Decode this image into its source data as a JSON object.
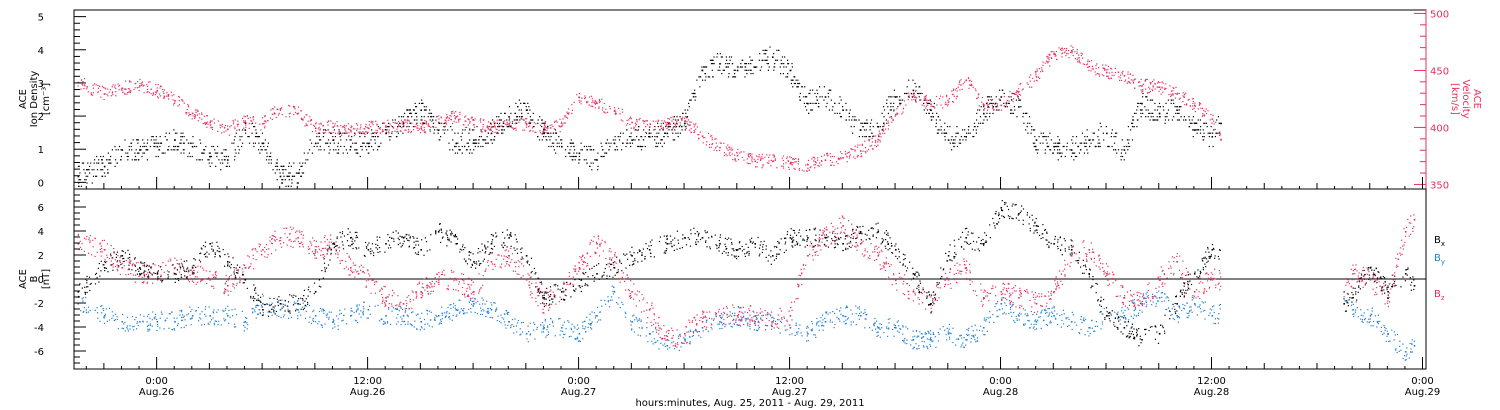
{
  "title": "",
  "xlabel": "hours:minutes, Aug. 25, 2011 - Aug. 29, 2011",
  "colors": {
    "black": "#000000",
    "pink": "#e8305c",
    "blue": "#1e7fd8"
  },
  "time_ticks": [
    {
      "time": "0:00",
      "date": "Aug.26"
    },
    {
      "time": "12:00",
      "date": "Aug.26"
    },
    {
      "time": "0:00",
      "date": "Aug.27"
    },
    {
      "time": "12:00",
      "date": "Aug.27"
    },
    {
      "time": "0:00",
      "date": "Aug.28"
    },
    {
      "time": "12:00",
      "date": "Aug.28"
    },
    {
      "time": "0:00",
      "date": "Aug.29"
    }
  ],
  "chart_data": [
    {
      "type": "scatter",
      "title": "",
      "x_unit": "hours since Aug. 25, 2011 00:00",
      "xlim": [
        19.3,
        96.2
      ],
      "ylabel_left": {
        "top": "ACE",
        "mid": "Ion Density",
        "unit": "[cm⁻³]"
      },
      "ylabel_right": {
        "top": "ACE",
        "mid": "Velocity",
        "unit": "[km/s]"
      },
      "ylim_left": [
        -0.2,
        5.2
      ],
      "ylim_right": [
        346,
        503
      ],
      "yticks_left": [
        0,
        1,
        2,
        3,
        4,
        5
      ],
      "yticks_right": [
        350,
        400,
        450,
        500
      ],
      "grid": false,
      "series": [
        {
          "name": "Ion Density",
          "axis": "left",
          "color": "#000000",
          "x": [
            19.5,
            21,
            22,
            23,
            24,
            25,
            26,
            27,
            28,
            29,
            30,
            31,
            32,
            33,
            34,
            35,
            36,
            37,
            38,
            39,
            40,
            41,
            42,
            43,
            44,
            45,
            46,
            47,
            48,
            49,
            50,
            51,
            52,
            53,
            54,
            55,
            56,
            57,
            58,
            59,
            60,
            61,
            62,
            63,
            64,
            65,
            66,
            67,
            68,
            69,
            70,
            71,
            72,
            73,
            74,
            75,
            76,
            77,
            78,
            79,
            80,
            81,
            82,
            83,
            84,
            84.5
          ],
          "values": [
            0.2,
            0.5,
            1.0,
            1.0,
            1.1,
            1.3,
            1.1,
            0.8,
            0.7,
            1.6,
            1.2,
            0.2,
            0.3,
            1.2,
            1.3,
            1.1,
            1.2,
            1.5,
            1.8,
            2.2,
            1.6,
            1.2,
            1.3,
            1.5,
            2.0,
            2.2,
            1.5,
            1.1,
            0.9,
            0.7,
            1.2,
            1.3,
            1.4,
            1.5,
            1.8,
            3.4,
            3.6,
            3.4,
            3.5,
            3.8,
            3.4,
            2.4,
            2.6,
            2.2,
            1.6,
            1.7,
            2.6,
            2.8,
            2.2,
            1.3,
            1.4,
            2.1,
            2.6,
            2.3,
            1.3,
            1.1,
            1.0,
            1.3,
            1.5,
            1.0,
            2.4,
            2.1,
            2.2,
            1.6,
            1.4,
            1.8
          ]
        },
        {
          "name": "Velocity",
          "axis": "right",
          "color": "#e8305c",
          "x": [
            19.5,
            21,
            22,
            23,
            24,
            25,
            26,
            27,
            28,
            29,
            30,
            31,
            32,
            33,
            34,
            35,
            36,
            37,
            38,
            39,
            40,
            41,
            42,
            43,
            44,
            45,
            46,
            47,
            48,
            49,
            50,
            51,
            52,
            53,
            54,
            55,
            56,
            57,
            58,
            59,
            60,
            61,
            62,
            63,
            64,
            65,
            66,
            67,
            68,
            69,
            70,
            71,
            72,
            73,
            74,
            75,
            76,
            77,
            78,
            79,
            80,
            81,
            82,
            83,
            84,
            84.5
          ],
          "values": [
            440,
            430,
            435,
            437,
            433,
            424,
            413,
            405,
            399,
            405,
            404,
            417,
            413,
            400,
            401,
            398,
            400,
            401,
            402,
            400,
            405,
            410,
            403,
            401,
            404,
            404,
            400,
            402,
            427,
            422,
            415,
            405,
            401,
            405,
            406,
            393,
            383,
            376,
            371,
            371,
            369,
            368,
            372,
            374,
            380,
            390,
            412,
            430,
            421,
            423,
            442,
            420,
            420,
            432,
            445,
            465,
            468,
            454,
            449,
            446,
            437,
            436,
            430,
            420,
            408,
            390
          ]
        }
      ]
    },
    {
      "type": "scatter",
      "title": "",
      "x_unit": "hours since Aug. 25, 2011 00:00",
      "xlim": [
        19.3,
        96.2
      ],
      "ylabel_left": {
        "top": "ACE",
        "mid": "B",
        "unit": "[nT]"
      },
      "ylim": [
        -7.5,
        7.5
      ],
      "yticks": [
        -6,
        -4,
        -2,
        0,
        2,
        4,
        6
      ],
      "zero_line": 0,
      "grid": false,
      "legend_position": "right",
      "data_gap_hours": [
        84.5,
        91.5
      ],
      "series": [
        {
          "name": "B",
          "subscript": "x",
          "color": "#000000",
          "x": [
            19.5,
            21,
            22,
            23,
            24,
            25,
            26,
            27,
            28,
            29,
            30,
            31,
            32,
            33,
            34,
            35,
            36,
            37,
            38,
            39,
            40,
            41,
            42,
            43,
            44,
            45,
            46,
            47,
            48,
            49,
            50,
            51,
            52,
            53,
            54,
            55,
            56,
            57,
            58,
            59,
            60,
            61,
            62,
            63,
            64,
            65,
            66,
            67,
            68,
            69,
            70,
            71,
            72,
            73,
            74,
            75,
            76,
            77,
            78,
            79,
            80,
            81,
            82,
            83,
            84,
            91.5,
            92,
            93,
            94,
            95,
            95.5
          ],
          "values": [
            -1.0,
            1.0,
            2.0,
            1.0,
            0.5,
            0.5,
            1.0,
            3.0,
            1.5,
            0.0,
            -2.5,
            -2.0,
            -2.0,
            -1.0,
            3.0,
            3.5,
            2.5,
            3.0,
            3.5,
            2.5,
            4.0,
            3.0,
            1.5,
            3.0,
            3.5,
            2.0,
            -1.5,
            -1.0,
            -0.5,
            0.5,
            1.0,
            2.0,
            2.5,
            3.0,
            3.5,
            3.5,
            3.0,
            2.5,
            3.0,
            2.0,
            3.5,
            3.5,
            3.5,
            3.0,
            4.0,
            4.0,
            2.5,
            0.5,
            -2.0,
            2.0,
            3.5,
            3.0,
            6.0,
            5.5,
            4.5,
            3.0,
            2.5,
            0.5,
            -3.0,
            -4.0,
            -5.0,
            -4.5,
            -2.0,
            0.5,
            2.5,
            -2.0,
            -1.5,
            1.0,
            -1.0,
            0.5,
            -0.5
          ]
        },
        {
          "name": "B",
          "subscript": "y",
          "color": "#1e7fd8",
          "x": [
            19.5,
            21,
            22,
            23,
            24,
            25,
            26,
            27,
            28,
            29,
            30,
            31,
            32,
            33,
            34,
            35,
            36,
            37,
            38,
            39,
            40,
            41,
            42,
            43,
            44,
            45,
            46,
            47,
            48,
            49,
            50,
            51,
            52,
            53,
            54,
            55,
            56,
            57,
            58,
            59,
            60,
            61,
            62,
            63,
            64,
            65,
            66,
            67,
            68,
            69,
            70,
            71,
            72,
            73,
            74,
            75,
            76,
            77,
            78,
            79,
            80,
            81,
            82,
            83,
            84,
            91.5,
            92,
            93,
            94,
            95,
            95.5
          ],
          "values": [
            -2.0,
            -3.0,
            -3.5,
            -3.5,
            -3.5,
            -3.5,
            -3.0,
            -3.0,
            -3.0,
            -3.5,
            -2.0,
            -2.5,
            -2.5,
            -3.0,
            -3.5,
            -3.0,
            -2.5,
            -3.0,
            -3.0,
            -3.5,
            -3.0,
            -2.5,
            -2.0,
            -2.5,
            -3.5,
            -4.5,
            -4.0,
            -4.0,
            -4.5,
            -3.0,
            -1.0,
            -3.5,
            -4.5,
            -5.5,
            -5.0,
            -4.0,
            -3.5,
            -3.0,
            -3.5,
            -3.5,
            -4.0,
            -4.5,
            -3.5,
            -3.0,
            -3.0,
            -4.0,
            -4.0,
            -5.0,
            -5.0,
            -4.5,
            -5.0,
            -4.0,
            -2.0,
            -3.0,
            -3.5,
            -3.0,
            -3.5,
            -4.0,
            -3.0,
            -3.0,
            -2.0,
            -1.5,
            -3.0,
            -2.0,
            -3.0,
            -1.0,
            -2.5,
            -3.0,
            -4.5,
            -6.0,
            -5.5
          ]
        },
        {
          "name": "B",
          "subscript": "z",
          "color": "#e8305c",
          "x": [
            19.5,
            21,
            22,
            23,
            24,
            25,
            26,
            27,
            28,
            29,
            30,
            31,
            32,
            33,
            34,
            35,
            36,
            37,
            38,
            39,
            40,
            41,
            42,
            43,
            44,
            45,
            46,
            47,
            48,
            49,
            50,
            51,
            52,
            53,
            54,
            55,
            56,
            57,
            58,
            59,
            60,
            61,
            62,
            63,
            64,
            65,
            66,
            67,
            68,
            69,
            70,
            71,
            72,
            73,
            74,
            75,
            76,
            77,
            78,
            79,
            80,
            81,
            82,
            83,
            84,
            91.5,
            92,
            93,
            94,
            95,
            95.5
          ],
          "values": [
            3.0,
            2.5,
            1.0,
            0.5,
            0.5,
            1.0,
            0.5,
            0.0,
            -0.5,
            1.0,
            2.5,
            3.5,
            3.5,
            2.5,
            3.0,
            1.0,
            0.0,
            -1.5,
            -2.0,
            -1.0,
            0.0,
            0.0,
            -1.0,
            1.5,
            2.0,
            0.0,
            -2.0,
            -1.0,
            1.0,
            3.0,
            1.5,
            -1.0,
            -2.5,
            -5.0,
            -4.5,
            -3.5,
            -3.0,
            -3.0,
            -3.0,
            -3.5,
            -3.0,
            2.0,
            3.5,
            4.5,
            3.0,
            2.0,
            0.0,
            -1.0,
            -2.0,
            0.0,
            1.0,
            -1.5,
            -1.0,
            -1.5,
            -2.0,
            -1.0,
            2.0,
            2.5,
            0.5,
            -1.5,
            -2.0,
            0.0,
            1.5,
            -1.0,
            0.0,
            -1.0,
            0.5,
            0.0,
            -1.5,
            4.0,
            5.0
          ]
        }
      ]
    }
  ]
}
